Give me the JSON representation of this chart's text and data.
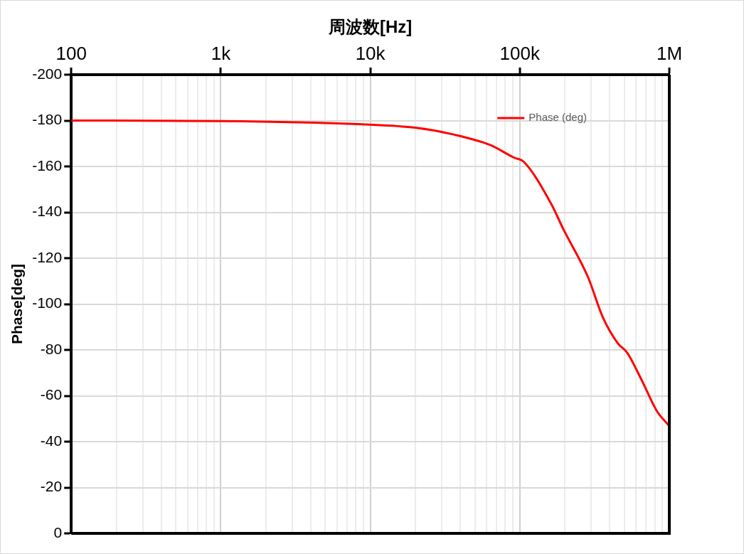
{
  "chart_data": {
    "type": "line",
    "xlabel": "周波数[Hz]",
    "ylabel": "Phase[deg]",
    "log": "x",
    "grid": true,
    "legend": "top right",
    "marker": "none",
    "line_style": "solid",
    "xlim": [
      100,
      1000000
    ],
    "xticks": [
      {
        "value": 100,
        "label": "100"
      },
      {
        "value": 1000,
        "label": "1k"
      },
      {
        "value": 10000,
        "label": "10k"
      },
      {
        "value": 100000,
        "label": "100k"
      },
      {
        "value": 1000000,
        "label": "1M"
      }
    ],
    "ylim": [
      0,
      -200
    ],
    "yticks": [
      0,
      -20,
      -40,
      -60,
      -80,
      -100,
      -120,
      -140,
      -160,
      -180,
      -200
    ],
    "series": [
      {
        "name": "Phase (deg)",
        "color": "#ff0000",
        "x": [
          100,
          1000,
          9400,
          20000,
          35600,
          63000,
          91700,
          106000,
          162000,
          196000,
          286000,
          359000,
          451000,
          523000,
          656000,
          824000,
          1000000
        ],
        "values": [
          -180,
          -179.8,
          -178.3,
          -176.9,
          -174,
          -169.4,
          -163.8,
          -162.1,
          -143.7,
          -132.5,
          -111.7,
          -94.2,
          -83,
          -78.7,
          -66.6,
          -53.4,
          -46.8
        ]
      }
    ]
  }
}
